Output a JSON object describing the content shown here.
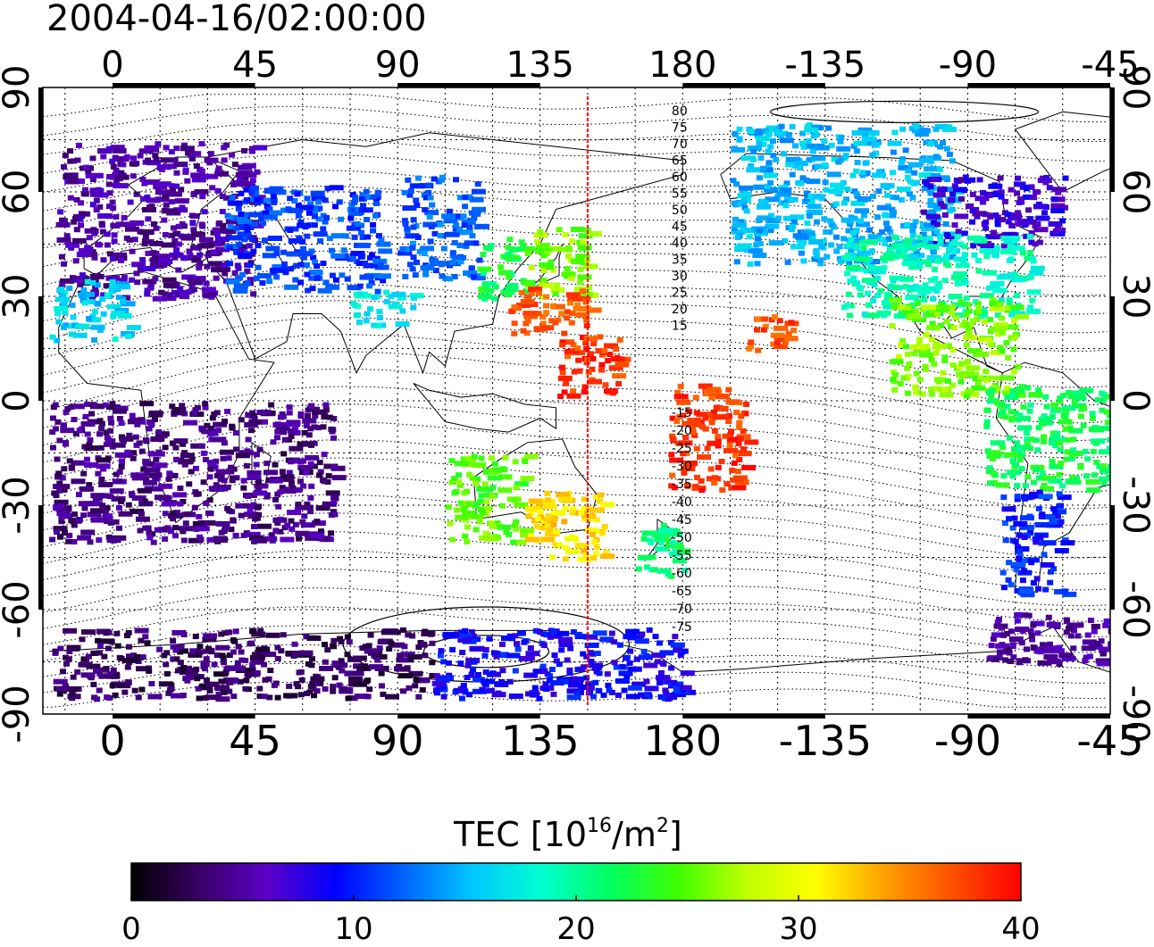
{
  "title": "2004-04-16/02:00:00",
  "lon_ticks": [
    "0",
    "45",
    "90",
    "135",
    "180",
    "-135",
    "-90",
    "-45"
  ],
  "lat_ticks": [
    "90",
    "60",
    "30",
    "0",
    "-30",
    "-60",
    "-90"
  ],
  "contour_labels_north": [
    "80",
    "75",
    "70",
    "65",
    "60",
    "55",
    "50",
    "45",
    "40",
    "35",
    "30",
    "25",
    "20",
    "15"
  ],
  "contour_labels_south": [
    "-15",
    "-20",
    "-25",
    "-30",
    "-35",
    "-40",
    "-45",
    "-50",
    "-55",
    "-60",
    "-65",
    "-70",
    "-75"
  ],
  "colorbar": {
    "label_main": "TEC  [10",
    "label_exp1": "16",
    "label_mid": "/m",
    "label_exp2": "2",
    "label_end": "]",
    "ticks": [
      "0",
      "10",
      "20",
      "30",
      "40"
    ],
    "min": 0,
    "max": 40,
    "colors": [
      "#000000",
      "#3a0066",
      "#5a00c8",
      "#0000ff",
      "#0066ff",
      "#00c8ff",
      "#00ffd0",
      "#00ff60",
      "#40ff00",
      "#c0ff00",
      "#ffff00",
      "#ffa000",
      "#ff5000",
      "#ff0000"
    ]
  },
  "chart_data": {
    "type": "heatmap",
    "title": "2004-04-16/02:00:00",
    "x_axis": {
      "label": "",
      "range": [
        -22,
        315
      ],
      "ticks": [
        0,
        45,
        90,
        135,
        180,
        -135,
        -90,
        -45
      ]
    },
    "y_axis": {
      "label": "",
      "range": [
        -90,
        90
      ],
      "ticks": [
        90,
        60,
        30,
        0,
        -30,
        -60,
        -90
      ]
    },
    "colorscale_range": [
      0,
      40
    ],
    "units": "10^16/m^2",
    "meridian_marker_lon": 150,
    "regions": [
      {
        "lon": [
          -18,
          45
        ],
        "lat": [
          30,
          75
        ],
        "tec": 5
      },
      {
        "lon": [
          -20,
          5
        ],
        "lat": [
          18,
          35
        ],
        "tec": 16
      },
      {
        "lon": [
          35,
          85
        ],
        "lat": [
          32,
          62
        ],
        "tec": 11
      },
      {
        "lon": [
          75,
          95
        ],
        "lat": [
          22,
          32
        ],
        "tec": 17
      },
      {
        "lon": [
          90,
          115
        ],
        "lat": [
          35,
          65
        ],
        "tec": 12
      },
      {
        "lon": [
          115,
          130
        ],
        "lat": [
          30,
          48
        ],
        "tec": 22
      },
      {
        "lon": [
          130,
          150
        ],
        "lat": [
          30,
          50
        ],
        "tec": 26
      },
      {
        "lon": [
          125,
          150
        ],
        "lat": [
          20,
          33
        ],
        "tec": 37
      },
      {
        "lon": [
          140,
          160
        ],
        "lat": [
          2,
          20
        ],
        "tec": 38
      },
      {
        "lon": [
          175,
          200
        ],
        "lat": [
          -25,
          5
        ],
        "tec": 38
      },
      {
        "lon": [
          200,
          215
        ],
        "lat": [
          15,
          25
        ],
        "tec": 37
      },
      {
        "lon": [
          195,
          265
        ],
        "lat": [
          40,
          80
        ],
        "tec": 15
      },
      {
        "lon": [
          255,
          300
        ],
        "lat": [
          45,
          65
        ],
        "tec": 7
      },
      {
        "lon": [
          230,
          290
        ],
        "lat": [
          25,
          48
        ],
        "tec": 19
      },
      {
        "lon": [
          245,
          285
        ],
        "lat": [
          2,
          30
        ],
        "tec": 26
      },
      {
        "lon": [
          275,
          320
        ],
        "lat": [
          -25,
          5
        ],
        "tec": 22
      },
      {
        "lon": [
          280,
          300
        ],
        "lat": [
          -55,
          -25
        ],
        "tec": 10
      },
      {
        "lon": [
          105,
          130
        ],
        "lat": [
          -40,
          -15
        ],
        "tec": 25
      },
      {
        "lon": [
          130,
          155
        ],
        "lat": [
          -45,
          -25
        ],
        "tec": 32
      },
      {
        "lon": [
          165,
          180
        ],
        "lat": [
          -50,
          -35
        ],
        "tec": 21
      },
      {
        "lon": [
          -20,
          70
        ],
        "lat": [
          -40,
          0
        ],
        "tec": 4
      },
      {
        "lon": [
          -20,
          100
        ],
        "lat": [
          -85,
          -65
        ],
        "tec": 3
      },
      {
        "lon": [
          100,
          180
        ],
        "lat": [
          -85,
          -65
        ],
        "tec": 9
      },
      {
        "lon": [
          275,
          315
        ],
        "lat": [
          -75,
          -60
        ],
        "tec": 5
      }
    ]
  }
}
